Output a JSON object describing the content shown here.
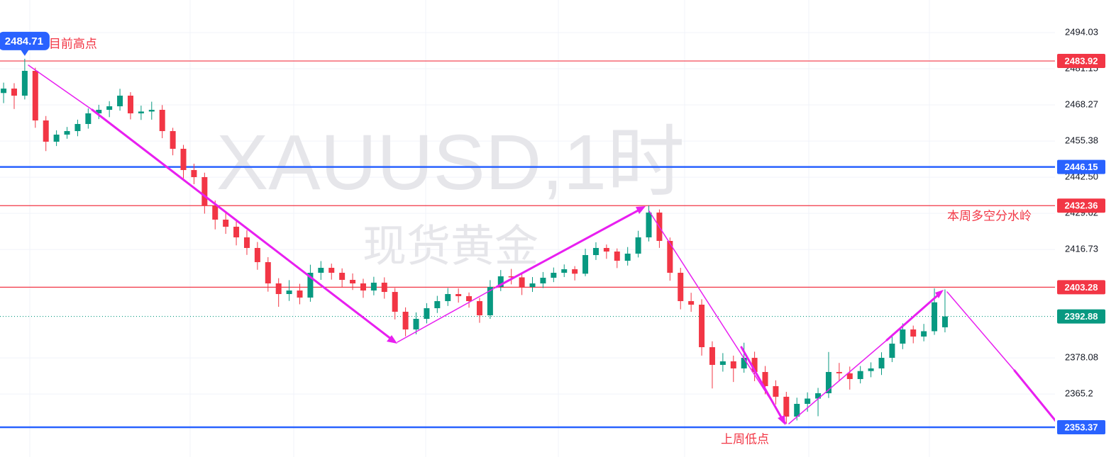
{
  "chart_data": {
    "type": "candlestick",
    "symbol_watermark": "XAUUSD,1时",
    "name_watermark": "现货黄金",
    "up_color": "#089981",
    "down_color": "#f23645",
    "ylim": [
      2342.77,
      2505.65
    ],
    "yticks": [
      2494.03,
      2481.15,
      2468.27,
      2455.38,
      {
        "value": 2442.5,
        "label": "2442.50"
      },
      2429.62,
      2416.73,
      2378.08,
      2365.2
    ],
    "xlim": [
      -0.34,
      99.4
    ],
    "x": [
      0,
      1,
      2,
      3,
      4,
      5,
      6,
      7,
      8,
      9,
      10,
      11,
      12,
      13,
      14,
      15,
      16,
      17,
      18,
      19,
      20,
      21,
      22,
      23,
      24,
      25,
      26,
      27,
      28,
      29,
      30,
      31,
      32,
      33,
      34,
      35,
      36,
      37,
      38,
      39,
      40,
      41,
      42,
      43,
      44,
      45,
      46,
      47,
      48,
      49,
      50,
      51,
      52,
      53,
      54,
      55,
      56,
      57,
      58,
      59,
      60,
      61,
      62,
      63,
      64,
      65,
      66,
      67,
      68,
      69,
      70,
      71,
      72,
      73,
      74,
      75,
      76,
      77,
      78,
      79,
      80,
      81,
      82,
      83,
      84,
      85,
      86,
      87,
      88,
      89
    ],
    "ohlc": [
      [
        2472.5,
        2476.2,
        2468.9,
        2474.08
      ],
      [
        2474.08,
        2476.0,
        2466.8,
        2471.56
      ],
      [
        2471.56,
        2484.71,
        2470.2,
        2480.4
      ],
      [
        2480.4,
        2481.5,
        2460.1,
        2462.72
      ],
      [
        2462.72,
        2464.3,
        2451.8,
        2455.14
      ],
      [
        2455.14,
        2459.2,
        2453.6,
        2457.67
      ],
      [
        2457.67,
        2460.4,
        2456.2,
        2458.93
      ],
      [
        2458.93,
        2463.0,
        2457.1,
        2461.46
      ],
      [
        2461.46,
        2467.0,
        2459.8,
        2465.25
      ],
      [
        2465.25,
        2468.3,
        2463.2,
        2466.51
      ],
      [
        2466.51,
        2469.6,
        2463.9,
        2467.77
      ],
      [
        2467.77,
        2474.0,
        2466.2,
        2471.56
      ],
      [
        2471.56,
        2472.8,
        2463.1,
        2465.25
      ],
      [
        2465.25,
        2468.0,
        2462.9,
        2465.9
      ],
      [
        2465.9,
        2469.4,
        2463.0,
        2466.51
      ],
      [
        2466.51,
        2468.2,
        2456.4,
        2458.93
      ],
      [
        2458.93,
        2460.1,
        2450.3,
        2452.62
      ],
      [
        2452.62,
        2454.0,
        2442.1,
        2445.04
      ],
      [
        2445.04,
        2447.3,
        2440.0,
        2442.52
      ],
      [
        2442.52,
        2444.1,
        2429.5,
        2432.42
      ],
      [
        2432.42,
        2434.2,
        2423.9,
        2427.37
      ],
      [
        2427.37,
        2430.1,
        2422.3,
        2424.84
      ],
      [
        2424.84,
        2427.0,
        2418.2,
        2421.05
      ],
      [
        2421.05,
        2423.6,
        2414.8,
        2417.27
      ],
      [
        2417.27,
        2419.4,
        2409.5,
        2412.22
      ],
      [
        2412.22,
        2414.0,
        2401.7,
        2404.64
      ],
      [
        2404.64,
        2406.5,
        2396.3,
        2400.85
      ],
      [
        2400.85,
        2405.8,
        2398.4,
        2402.11
      ],
      [
        2402.11,
        2404.5,
        2397.2,
        2399.59
      ],
      [
        2399.59,
        2411.3,
        2398.1,
        2408.43
      ],
      [
        2408.43,
        2412.6,
        2405.9,
        2410.2
      ],
      [
        2410.2,
        2411.7,
        2406.0,
        2408.43
      ],
      [
        2408.43,
        2410.0,
        2403.2,
        2405.9
      ],
      [
        2405.9,
        2408.2,
        2402.3,
        2404.64
      ],
      [
        2404.64,
        2406.3,
        2399.5,
        2402.11
      ],
      [
        2402.11,
        2407.0,
        2400.4,
        2404.9
      ],
      [
        2404.9,
        2406.8,
        2399.2,
        2401.6
      ],
      [
        2401.6,
        2403.0,
        2391.8,
        2394.54
      ],
      [
        2394.54,
        2396.1,
        2385.8,
        2388.23
      ],
      [
        2388.23,
        2394.3,
        2386.5,
        2392.01
      ],
      [
        2392.01,
        2397.6,
        2390.4,
        2395.8
      ],
      [
        2395.8,
        2400.2,
        2394.1,
        2398.33
      ],
      [
        2398.33,
        2403.0,
        2396.6,
        2400.85
      ],
      [
        2400.85,
        2402.9,
        2397.8,
        2400.09
      ],
      [
        2400.09,
        2401.4,
        2396.0,
        2398.33
      ],
      [
        2398.33,
        2399.5,
        2390.6,
        2393.28
      ],
      [
        2393.28,
        2405.8,
        2392.0,
        2403.38
      ],
      [
        2403.38,
        2409.4,
        2401.9,
        2407.17
      ],
      [
        2407.17,
        2409.8,
        2404.3,
        2406.8
      ],
      [
        2406.8,
        2408.0,
        2400.5,
        2403.38
      ],
      [
        2403.38,
        2406.9,
        2401.6,
        2404.64
      ],
      [
        2404.64,
        2408.7,
        2403.0,
        2406.66
      ],
      [
        2406.66,
        2410.3,
        2405.1,
        2408.43
      ],
      [
        2408.43,
        2411.4,
        2406.9,
        2409.69
      ],
      [
        2409.69,
        2410.8,
        2405.7,
        2408.1
      ],
      [
        2408.1,
        2417.0,
        2407.2,
        2414.74
      ],
      [
        2414.74,
        2419.3,
        2413.0,
        2417.27
      ],
      [
        2417.27,
        2418.5,
        2413.4,
        2416.0
      ],
      [
        2416.0,
        2417.1,
        2410.1,
        2412.72
      ],
      [
        2412.72,
        2417.6,
        2411.0,
        2415.25
      ],
      [
        2415.25,
        2423.4,
        2413.9,
        2421.05
      ],
      [
        2421.05,
        2432.4,
        2419.6,
        2429.89
      ],
      [
        2429.89,
        2431.0,
        2417.3,
        2419.79
      ],
      [
        2419.79,
        2421.0,
        2405.6,
        2408.43
      ],
      [
        2408.43,
        2410.2,
        2395.4,
        2398.33
      ],
      [
        2398.33,
        2401.3,
        2394.5,
        2397.06
      ],
      [
        2397.06,
        2399.0,
        2378.9,
        2381.91
      ],
      [
        2381.91,
        2384.0,
        2367.2,
        2375.6
      ],
      [
        2375.6,
        2379.8,
        2373.2,
        2376.86
      ],
      [
        2376.86,
        2378.9,
        2369.5,
        2374.34
      ],
      [
        2374.34,
        2383.5,
        2372.8,
        2378.12
      ],
      [
        2378.12,
        2380.3,
        2369.8,
        2373.07
      ],
      [
        2373.07,
        2375.2,
        2365.1,
        2368.02
      ],
      [
        2368.02,
        2370.1,
        2361.5,
        2364.24
      ],
      [
        2364.24,
        2366.0,
        2354.6,
        2357.17
      ],
      [
        2357.17,
        2363.9,
        2355.8,
        2361.71
      ],
      [
        2361.71,
        2365.8,
        2358.9,
        2363.6
      ],
      [
        2363.6,
        2367.4,
        2357.3,
        2365.5
      ],
      [
        2365.5,
        2380.2,
        2363.8,
        2373.07
      ],
      [
        2373.07,
        2376.3,
        2369.9,
        2372.6
      ],
      [
        2372.6,
        2375.0,
        2366.8,
        2370.55
      ],
      [
        2370.55,
        2375.2,
        2369.0,
        2373.4
      ],
      [
        2373.4,
        2376.5,
        2371.2,
        2374.34
      ],
      [
        2374.34,
        2380.1,
        2372.0,
        2378.12
      ],
      [
        2378.12,
        2386.0,
        2376.6,
        2383.18
      ],
      [
        2383.18,
        2390.4,
        2381.2,
        2388.23
      ],
      [
        2388.23,
        2389.6,
        2383.3,
        2385.7
      ],
      [
        2385.7,
        2390.2,
        2384.0,
        2387.6
      ],
      [
        2387.6,
        2402.9,
        2386.3,
        2397.9
      ],
      [
        2389.0,
        2402.5,
        2387.2,
        2392.88
      ]
    ],
    "levels": [
      {
        "value": 2483.92,
        "color": "#f23645",
        "style": "solid"
      },
      {
        "value": 2446.15,
        "color": "#2962ff",
        "style": "solid"
      },
      {
        "value": 2432.36,
        "color": "#f23645",
        "style": "solid"
      },
      {
        "value": 2403.28,
        "color": "#f23645",
        "style": "solid"
      },
      {
        "value": 2392.88,
        "color": "#089981",
        "style": "dotted"
      },
      {
        "value": 2353.37,
        "color": "#2962ff",
        "style": "solid"
      }
    ],
    "high_marker": {
      "value": 2484.71,
      "label": "目前高点"
    },
    "annotations": [
      "本周多空分水岭",
      "上周低点"
    ]
  }
}
